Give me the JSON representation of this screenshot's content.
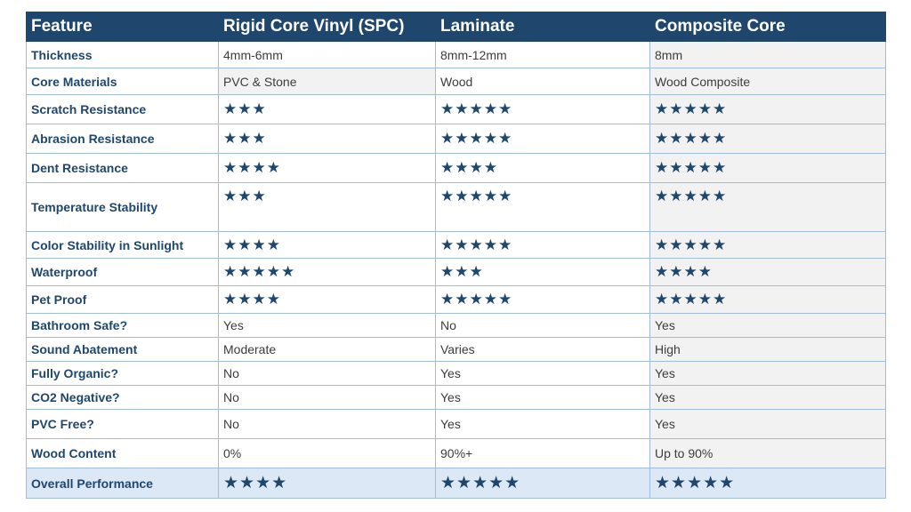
{
  "headers": [
    "Feature",
    "Rigid Core Vinyl (SPC)",
    "Laminate",
    "Composite Core"
  ],
  "rows": [
    {
      "feature": "Thickness",
      "spc": "4mm-6mm",
      "laminate": "8mm-12mm",
      "composite": "8mm"
    },
    {
      "feature": "Core Materials",
      "spc": "PVC & Stone",
      "laminate": "Wood",
      "composite": "Wood Composite"
    },
    {
      "feature": "Scratch Resistance",
      "spc": "★★★",
      "laminate": "★★★★★",
      "composite": "★★★★★"
    },
    {
      "feature": "Abrasion Resistance",
      "spc": "★★★",
      "laminate": "★★★★★",
      "composite": "★★★★★"
    },
    {
      "feature": "Dent Resistance",
      "spc": "★★★★",
      "laminate": "★★★★",
      "composite": "★★★★★"
    },
    {
      "feature": "Temperature Stability",
      "spc": "★★★",
      "laminate": "★★★★★",
      "composite": "★★★★★"
    },
    {
      "feature": "Color Stability in Sunlight",
      "spc": "★★★★",
      "laminate": "★★★★★",
      "composite": "★★★★★"
    },
    {
      "feature": "Waterproof",
      "spc": "★★★★★",
      "laminate": "★★★",
      "composite": "★★★★"
    },
    {
      "feature": "Pet Proof",
      "spc": "★★★★",
      "laminate": "★★★★★",
      "composite": "★★★★★"
    },
    {
      "feature": "Bathroom Safe?",
      "spc": "Yes",
      "laminate": "No",
      "composite": "Yes"
    },
    {
      "feature": "Sound Abatement",
      "spc": "Moderate",
      "laminate": "Varies",
      "composite": "High"
    },
    {
      "feature": "Fully Organic?",
      "spc": "No",
      "laminate": "Yes",
      "composite": "Yes"
    },
    {
      "feature": "CO2 Negative?",
      "spc": "No",
      "laminate": "Yes",
      "composite": "Yes"
    },
    {
      "feature": "PVC Free?",
      "spc": "No",
      "laminate": "Yes",
      "composite": "Yes"
    },
    {
      "feature": "Wood Content",
      "spc": "0%",
      "laminate": "90%+",
      "composite": "Up to 90%"
    },
    {
      "feature": "Overall Performance",
      "spc": "★★★★",
      "laminate": "★★★★★",
      "composite": "★★★★★"
    }
  ],
  "colors": {
    "header_bg": "#1f466d",
    "accent": "#1f466d",
    "border": "#9fbcd8",
    "shade": "#f2f2f2",
    "overall_bg": "#dce8f5"
  }
}
